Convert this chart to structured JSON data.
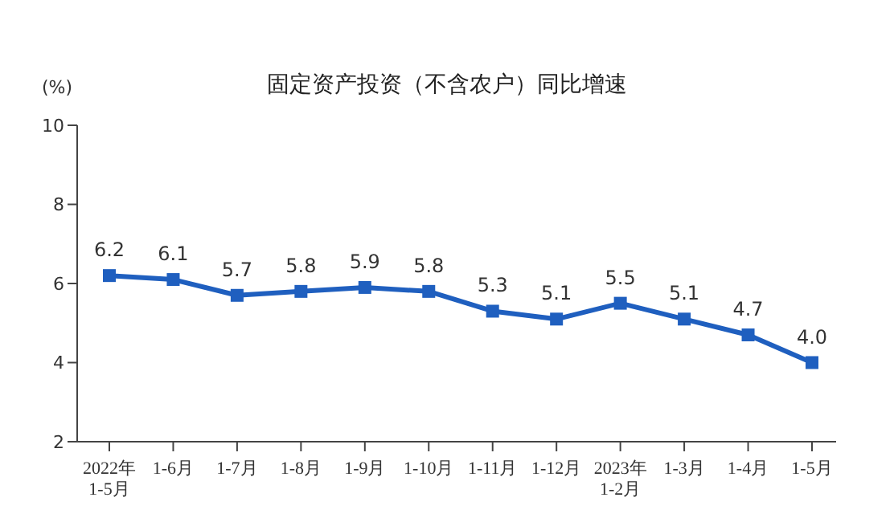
{
  "chart_data": {
    "type": "line",
    "title": "固定资产投资（不含农户）同比增速",
    "ylabel": "(%)",
    "categories": [
      "2022年\n1-5月",
      "1-6月",
      "1-7月",
      "1-8月",
      "1-9月",
      "1-10月",
      "1-11月",
      "1-12月",
      "2023年\n1-2月",
      "1-3月",
      "1-4月",
      "1-5月"
    ],
    "series": [
      {
        "color": "#1f5fbf",
        "values": [
          6.2,
          6.1,
          5.7,
          5.8,
          5.9,
          5.8,
          5.3,
          5.1,
          5.5,
          5.1,
          4.7,
          4.0
        ],
        "value_labels": [
          "6.2",
          "6.1",
          "5.7",
          "5.8",
          "5.9",
          "5.8",
          "5.3",
          "5.1",
          "5.5",
          "5.1",
          "4.7",
          "4.0"
        ]
      }
    ],
    "ylim": [
      2,
      10
    ],
    "yticks": [
      2,
      4,
      6,
      8,
      10
    ],
    "marker": "square",
    "grid": false
  }
}
